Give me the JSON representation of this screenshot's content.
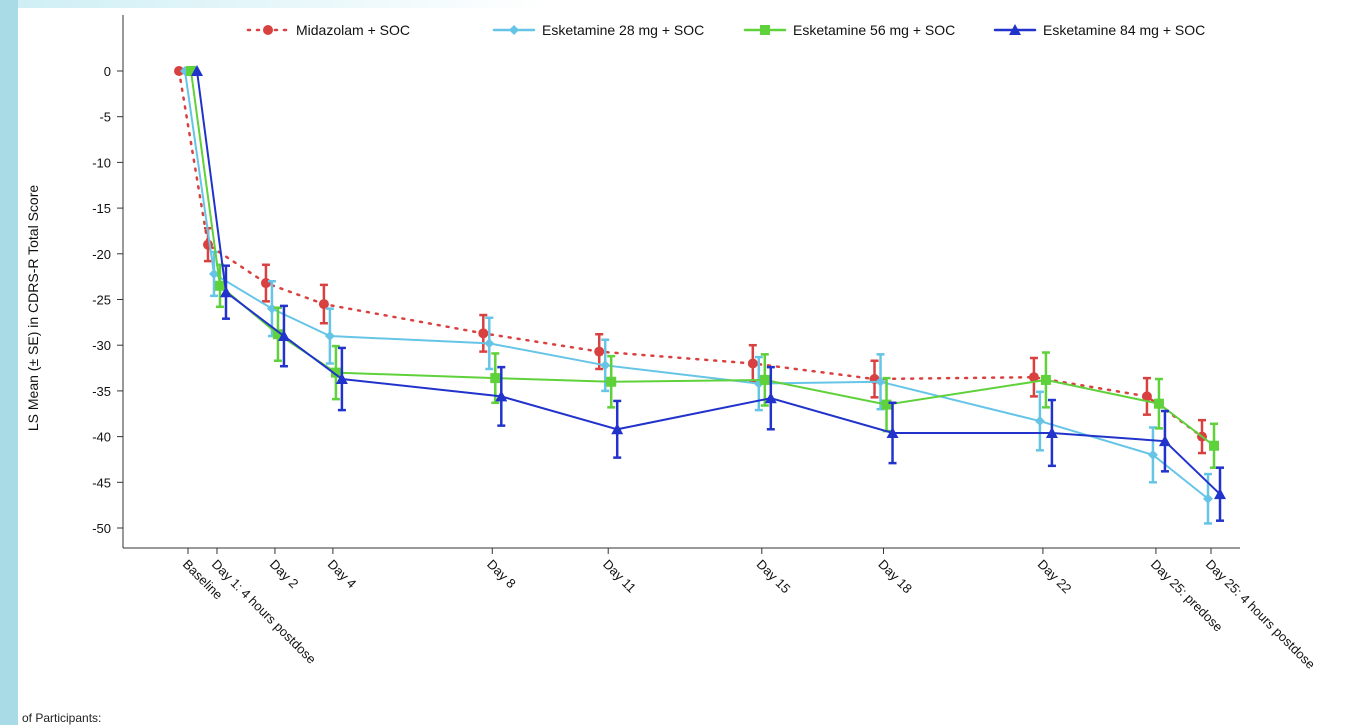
{
  "footer_note": "of Participants:",
  "chart_data": {
    "type": "line",
    "title": "",
    "xlabel": "",
    "ylabel": "LS Mean (± SE) in CDRS-R Total Score",
    "ylim": [
      -52,
      4
    ],
    "yticks": [
      0,
      -5,
      -10,
      -15,
      -20,
      -25,
      -30,
      -35,
      -40,
      -45,
      -50
    ],
    "ytick_labels": [
      "0",
      "-5",
      "-10",
      "-15",
      "-20",
      "-25",
      "-30",
      "-35",
      "-40",
      "-45",
      "-50"
    ],
    "grid": false,
    "legend_position": "top",
    "categories": [
      "Baseline",
      "Day 1: 4 hours postdose",
      "Day 2",
      "Day 4",
      "Day 8",
      "Day 11",
      "Day 15",
      "Day 18",
      "Day 22",
      "Day 25: predose",
      "Day 25: 4 hours postdose"
    ],
    "day_positions": [
      0,
      1,
      3,
      5,
      10.5,
      14.5,
      19.8,
      24,
      29.5,
      33.4,
      35.3
    ],
    "series": [
      {
        "name": "Midazolam + SOC",
        "color": "#d94040",
        "line_style": "dotted",
        "marker": "circle",
        "values": [
          0,
          -19,
          -23.2,
          -25.5,
          -28.7,
          -30.7,
          -32.0,
          -33.7,
          -33.5,
          -35.6,
          -40.0
        ],
        "se": [
          0,
          1.8,
          2.0,
          2.1,
          2.0,
          1.9,
          2.0,
          2.0,
          2.1,
          2.0,
          1.8
        ]
      },
      {
        "name": "Esketamine 28 mg + SOC",
        "color": "#66c5e6",
        "line_style": "solid",
        "marker": "diamond",
        "values": [
          0,
          -22.2,
          -26.0,
          -29.0,
          -29.8,
          -32.2,
          -34.2,
          -34.0,
          -38.3,
          -42.0,
          -46.8
        ],
        "se": [
          0,
          2.4,
          3.0,
          3.0,
          2.8,
          2.8,
          2.9,
          3.0,
          3.2,
          3.0,
          2.7
        ]
      },
      {
        "name": "Esketamine 56 mg + SOC",
        "color": "#5fd13a",
        "line_style": "solid",
        "marker": "square",
        "values": [
          0,
          -23.5,
          -28.8,
          -33.0,
          -33.6,
          -34.0,
          -33.8,
          -36.5,
          -33.8,
          -36.4,
          -41.0
        ],
        "se": [
          0,
          2.3,
          2.9,
          2.9,
          2.7,
          2.8,
          2.8,
          2.9,
          3.0,
          2.7,
          2.4
        ]
      },
      {
        "name": "Esketamine 84 mg + SOC",
        "color": "#2233cc",
        "line_style": "solid",
        "marker": "triangle",
        "values": [
          0,
          -24.2,
          -29.0,
          -33.7,
          -35.6,
          -39.2,
          -35.8,
          -39.6,
          -39.6,
          -40.5,
          -46.3
        ],
        "se": [
          0,
          2.9,
          3.3,
          3.4,
          3.2,
          3.1,
          3.4,
          3.3,
          3.6,
          3.3,
          2.9
        ]
      }
    ]
  }
}
